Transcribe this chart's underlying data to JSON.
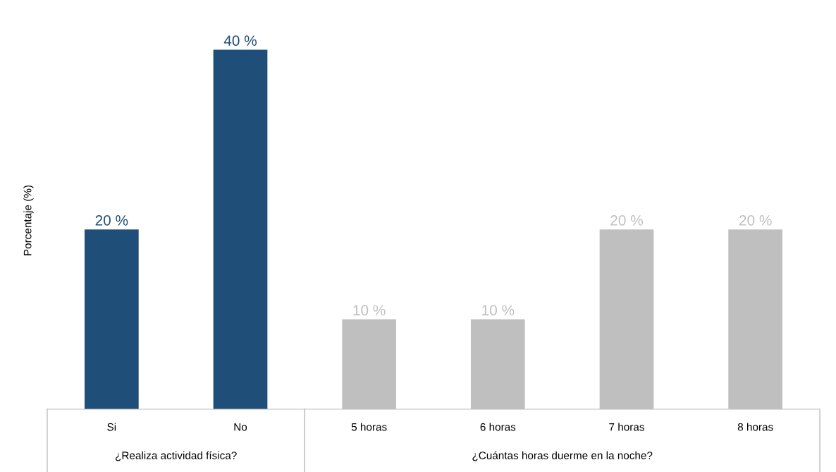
{
  "chart_data": {
    "type": "bar",
    "ylabel": "Porcentaje (%)",
    "categories": [
      "Si",
      "No",
      "5 horas",
      "6 horas",
      "7 horas",
      "8 horas"
    ],
    "series": [
      {
        "color": "#1f4e79",
        "values": [
          20,
          40,
          null,
          null,
          null,
          null
        ],
        "value_labels": [
          "20 %",
          "40 %",
          null,
          null,
          null,
          null
        ]
      },
      {
        "color": "#bfbfbf",
        "values": [
          null,
          null,
          10,
          10,
          20,
          20
        ],
        "value_labels": [
          null,
          null,
          "10 %",
          "10 %",
          "20 %",
          "20 %"
        ]
      }
    ],
    "annotations": [
      "¿Realiza actividad física?",
      "¿Cuántas horas duerme en la noche?"
    ]
  }
}
